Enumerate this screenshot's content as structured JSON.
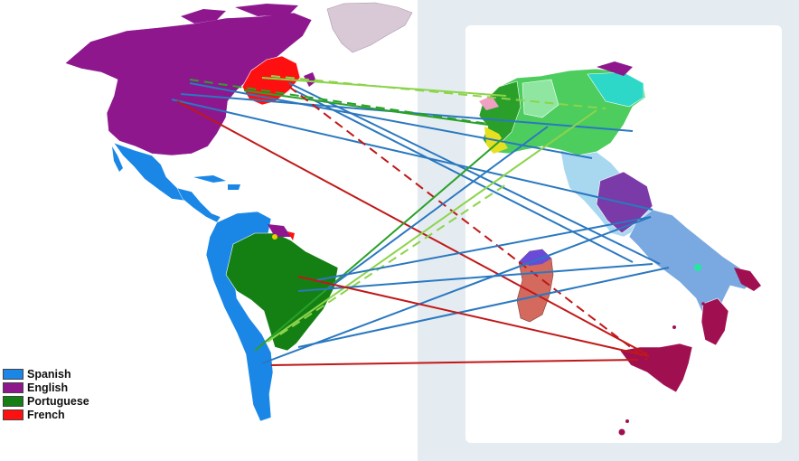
{
  "legend": {
    "items": [
      {
        "label": "Spanish",
        "color": "#1a87e6"
      },
      {
        "label": "English",
        "color": "#8e178e"
      },
      {
        "label": "Portuguese",
        "color": "#148014"
      },
      {
        "label": "French",
        "color": "#ff1010"
      }
    ]
  },
  "colors": {
    "spanish": "#1a87e6",
    "english": "#8e178e",
    "portuguese": "#148014",
    "french": "#ff1010",
    "ocean": "#ffffff",
    "panel": "#e3ebf0",
    "route_blue": "#2a78c0",
    "route_red": "#c01818",
    "route_green_dark": "#2aa02a",
    "route_green_light": "#8cd44a"
  }
}
